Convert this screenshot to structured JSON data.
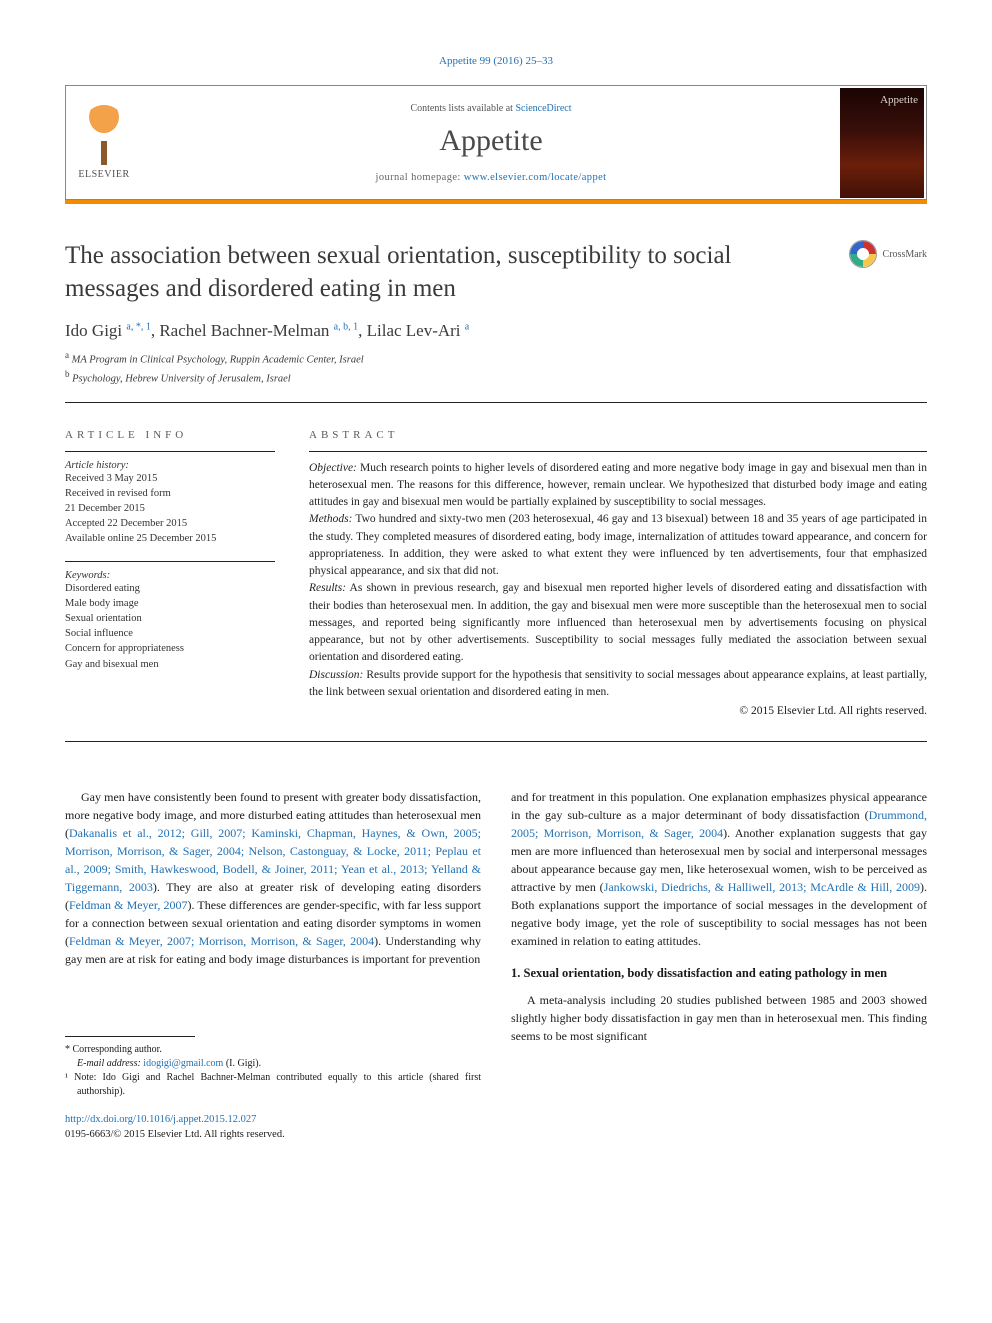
{
  "citation": "Appetite 99 (2016) 25–33",
  "header": {
    "contents_prefix": "Contents lists available at ",
    "contents_link": "ScienceDirect",
    "journal": "Appetite",
    "homepage_prefix": "journal homepage: ",
    "homepage_url": "www.elsevier.com/locate/appet",
    "publisher_label": "ELSEVIER",
    "cover_title": "Appetite"
  },
  "colors": {
    "accent": "#f38b00",
    "link": "#2271b3",
    "text": "#1a1a1a"
  },
  "crossmark_label": "CrossMark",
  "title": "The association between sexual orientation, susceptibility to social messages and disordered eating in men",
  "authors_html": [
    {
      "name": "Ido Gigi",
      "sup": "a, *, 1"
    },
    {
      "name": "Rachel Bachner-Melman",
      "sup": "a, b, 1"
    },
    {
      "name": "Lilac Lev-Ari",
      "sup": "a"
    }
  ],
  "affiliations": [
    {
      "marker": "a",
      "text": "MA Program in Clinical Psychology, Ruppin Academic Center, Israel"
    },
    {
      "marker": "b",
      "text": "Psychology, Hebrew University of Jerusalem, Israel"
    }
  ],
  "article_info": {
    "heading": "article info",
    "history_label": "Article history:",
    "history": [
      "Received 3 May 2015",
      "Received in revised form",
      "21 December 2015",
      "Accepted 22 December 2015",
      "Available online 25 December 2015"
    ],
    "keywords_label": "Keywords:",
    "keywords": [
      "Disordered eating",
      "Male body image",
      "Sexual orientation",
      "Social influence",
      "Concern for appropriateness",
      "Gay and bisexual men"
    ]
  },
  "abstract": {
    "heading": "abstract",
    "sections": [
      {
        "label": "Objective:",
        "text": "Much research points to higher levels of disordered eating and more negative body image in gay and bisexual men than in heterosexual men. The reasons for this difference, however, remain unclear. We hypothesized that disturbed body image and eating attitudes in gay and bisexual men would be partially explained by susceptibility to social messages."
      },
      {
        "label": "Methods:",
        "text": "Two hundred and sixty-two men (203 heterosexual, 46 gay and 13 bisexual) between 18 and 35 years of age participated in the study. They completed measures of disordered eating, body image, internalization of attitudes toward appearance, and concern for appropriateness. In addition, they were asked to what extent they were influenced by ten advertisements, four that emphasized physical appearance, and six that did not."
      },
      {
        "label": "Results:",
        "text": "As shown in previous research, gay and bisexual men reported higher levels of disordered eating and dissatisfaction with their bodies than heterosexual men. In addition, the gay and bisexual men were more susceptible than the heterosexual men to social messages, and reported being significantly more influenced than heterosexual men by advertisements focusing on physical appearance, but not by other advertisements. Susceptibility to social messages fully mediated the association between sexual orientation and disordered eating."
      },
      {
        "label": "Discussion:",
        "text": "Results provide support for the hypothesis that sensitivity to social messages about appearance explains, at least partially, the link between sexual orientation and disordered eating in men."
      }
    ],
    "copyright": "© 2015 Elsevier Ltd. All rights reserved."
  },
  "body": {
    "left_para": "Gay men have consistently been found to present with greater body dissatisfaction, more negative body image, and more disturbed eating attitudes than heterosexual men (",
    "left_refs1": "Dakanalis et al., 2012; Gill, 2007; Kaminski, Chapman, Haynes, & Own, 2005; Morrison, Morrison, & Sager, 2004; Nelson, Castonguay, & Locke, 2011; Peplau et al., 2009; Smith, Hawkeswood, Bodell, & Joiner, 2011; Yean et al., 2013; Yelland & Tiggemann, 2003",
    "left_mid1": "). They are also at greater risk of developing eating disorders (",
    "left_refs2": "Feldman & Meyer, 2007",
    "left_mid2": "). These differences are gender-specific, with far less support for a connection between sexual orientation and eating disorder symptoms in women (",
    "left_refs3": "Feldman & Meyer, 2007; Morrison, Morrison, & Sager, 2004",
    "left_mid3": "). Understanding why gay men are at risk for eating and body image disturbances is important for prevention",
    "right_para1_a": "and for treatment in this population. One explanation emphasizes physical appearance in the gay sub-culture as a major determinant of body dissatisfaction (",
    "right_refs1": "Drummond, 2005; Morrison, Morrison, & Sager, 2004",
    "right_para1_b": "). Another explanation suggests that gay men are more influenced than heterosexual men by social and interpersonal messages about appearance because gay men, like heterosexual women, wish to be perceived as attractive by men (",
    "right_refs2": "Jankowski, Diedrichs, & Halliwell, 2013; McArdle & Hill, 2009",
    "right_para1_c": "). Both explanations support the importance of social messages in the development of negative body image, yet the role of susceptibility to social messages has not been examined in relation to eating attitudes.",
    "section1_heading": "1. Sexual orientation, body dissatisfaction and eating pathology in men",
    "section1_para": "A meta-analysis including 20 studies published between 1985 and 2003 showed slightly higher body dissatisfaction in gay men than in heterosexual men. This finding seems to be most significant"
  },
  "footnotes": {
    "corr": "* Corresponding author.",
    "email_label": "E-mail address:",
    "email": "idogigi@gmail.com",
    "email_tail": " (I. Gigi).",
    "note1": "¹ Note: Ido Gigi and Rachel Bachner-Melman contributed equally to this article (shared first authorship)."
  },
  "doi": {
    "url": "http://dx.doi.org/10.1016/j.appet.2015.12.027",
    "issn_line": "0195-6663/© 2015 Elsevier Ltd. All rights reserved."
  }
}
